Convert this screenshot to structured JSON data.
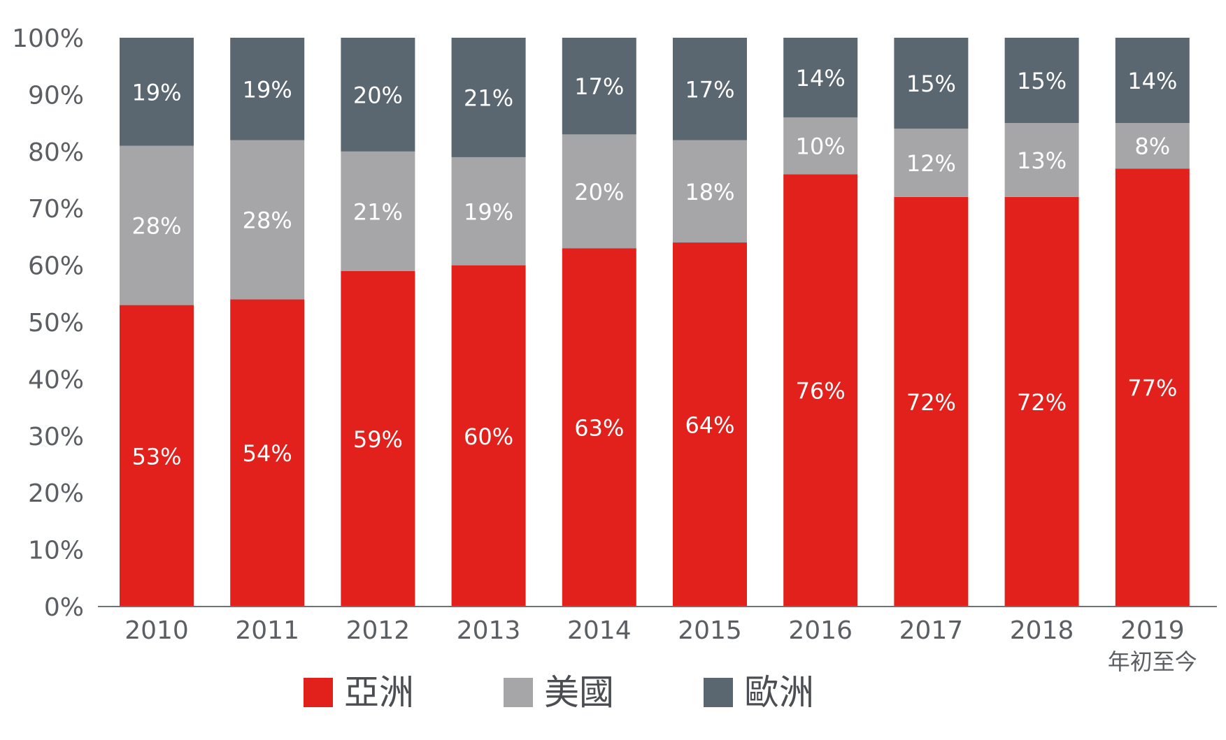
{
  "chart_data": {
    "type": "bar",
    "stacked": true,
    "title": "",
    "xlabel": "",
    "ylabel": "",
    "categories": [
      "2010",
      "2011",
      "2012",
      "2013",
      "2014",
      "2015",
      "2016",
      "2017",
      "2018",
      "2019"
    ],
    "category_sublabels": [
      "",
      "",
      "",
      "",
      "",
      "",
      "",
      "",
      "",
      "年初至今"
    ],
    "ylim": [
      0,
      100
    ],
    "y_ticks": [
      0,
      10,
      20,
      30,
      40,
      50,
      60,
      70,
      80,
      90,
      100
    ],
    "y_tick_suffix": "%",
    "series": [
      {
        "name": "亞洲",
        "color": "#e2211c",
        "values": [
          53,
          54,
          59,
          60,
          63,
          64,
          76,
          72,
          72,
          77
        ]
      },
      {
        "name": "美國",
        "color": "#a6a6a8",
        "values": [
          28,
          28,
          21,
          19,
          20,
          18,
          10,
          12,
          13,
          8
        ]
      },
      {
        "name": "歐洲",
        "color": "#5a6670",
        "values": [
          19,
          19,
          20,
          21,
          17,
          17,
          14,
          15,
          15,
          14
        ]
      }
    ],
    "value_label_suffix": "%",
    "grid": false,
    "legend_position": "bottom-left"
  }
}
